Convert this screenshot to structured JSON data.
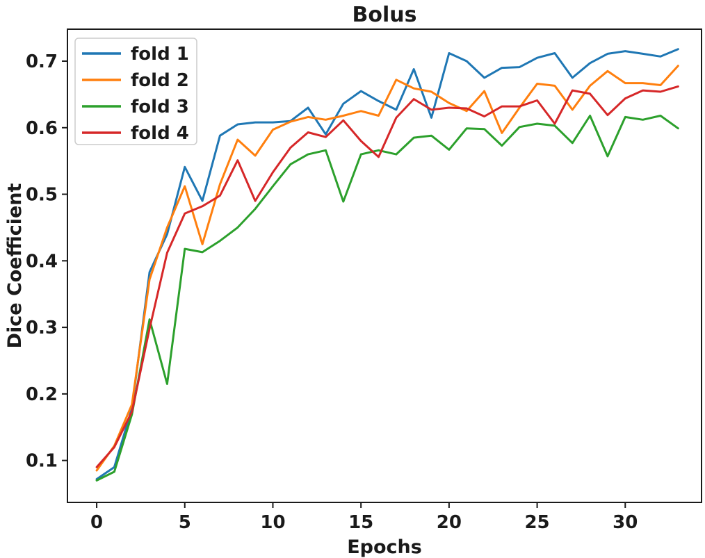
{
  "figure": {
    "title": "Bolus"
  },
  "chart_data": {
    "type": "line",
    "title": "Bolus",
    "xlabel": "Epochs",
    "ylabel": "Dice Coefficient",
    "xlim": [
      -1.66,
      34.33
    ],
    "ylim": [
      0.037,
      0.748
    ],
    "xticks": [
      0,
      5,
      10,
      15,
      20,
      25,
      30
    ],
    "yticks": [
      0.1,
      0.2,
      0.3,
      0.4,
      0.5,
      0.6,
      0.7
    ],
    "grid": false,
    "legend_position": "upper left",
    "x": [
      0,
      1,
      2,
      3,
      4,
      5,
      6,
      7,
      8,
      9,
      10,
      11,
      12,
      13,
      14,
      15,
      16,
      17,
      18,
      19,
      20,
      21,
      22,
      23,
      24,
      25,
      26,
      27,
      28,
      29,
      30,
      31,
      32,
      33
    ],
    "series": [
      {
        "name": "fold 1",
        "color": "#1f77b4",
        "values": [
          0.072,
          0.09,
          0.178,
          0.383,
          0.44,
          0.541,
          0.49,
          0.588,
          0.605,
          0.608,
          0.608,
          0.61,
          0.63,
          0.59,
          0.636,
          0.655,
          0.64,
          0.627,
          0.688,
          0.615,
          0.712,
          0.7,
          0.675,
          0.69,
          0.691,
          0.705,
          0.712,
          0.675,
          0.697,
          0.711,
          0.715,
          0.711,
          0.707,
          0.718
        ]
      },
      {
        "name": "fold 2",
        "color": "#ff7f0e",
        "values": [
          0.085,
          0.122,
          0.184,
          0.372,
          0.45,
          0.512,
          0.425,
          0.515,
          0.582,
          0.558,
          0.597,
          0.609,
          0.616,
          0.612,
          0.618,
          0.625,
          0.618,
          0.672,
          0.659,
          0.654,
          0.637,
          0.625,
          0.655,
          0.592,
          0.63,
          0.666,
          0.663,
          0.627,
          0.663,
          0.685,
          0.667,
          0.667,
          0.664,
          0.693
        ]
      },
      {
        "name": "fold 3",
        "color": "#2ca02c",
        "values": [
          0.07,
          0.083,
          0.169,
          0.312,
          0.215,
          0.418,
          0.413,
          0.43,
          0.45,
          0.478,
          0.512,
          0.545,
          0.56,
          0.566,
          0.489,
          0.56,
          0.566,
          0.56,
          0.585,
          0.588,
          0.567,
          0.599,
          0.598,
          0.573,
          0.601,
          0.606,
          0.603,
          0.577,
          0.618,
          0.557,
          0.616,
          0.612,
          0.618,
          0.599
        ]
      },
      {
        "name": "fold 4",
        "color": "#d62728",
        "values": [
          0.09,
          0.12,
          0.173,
          0.298,
          0.412,
          0.471,
          0.482,
          0.498,
          0.551,
          0.49,
          0.533,
          0.57,
          0.593,
          0.586,
          0.611,
          0.58,
          0.556,
          0.615,
          0.643,
          0.627,
          0.63,
          0.629,
          0.617,
          0.632,
          0.632,
          0.641,
          0.606,
          0.656,
          0.651,
          0.619,
          0.644,
          0.656,
          0.654,
          0.662
        ]
      }
    ],
    "style": {
      "spine_color": "#1a1a1a",
      "tick_color": "#1a1a1a",
      "line_width": 3,
      "legend_border": "#cccccc",
      "legend_bg": "#ffffff"
    }
  }
}
